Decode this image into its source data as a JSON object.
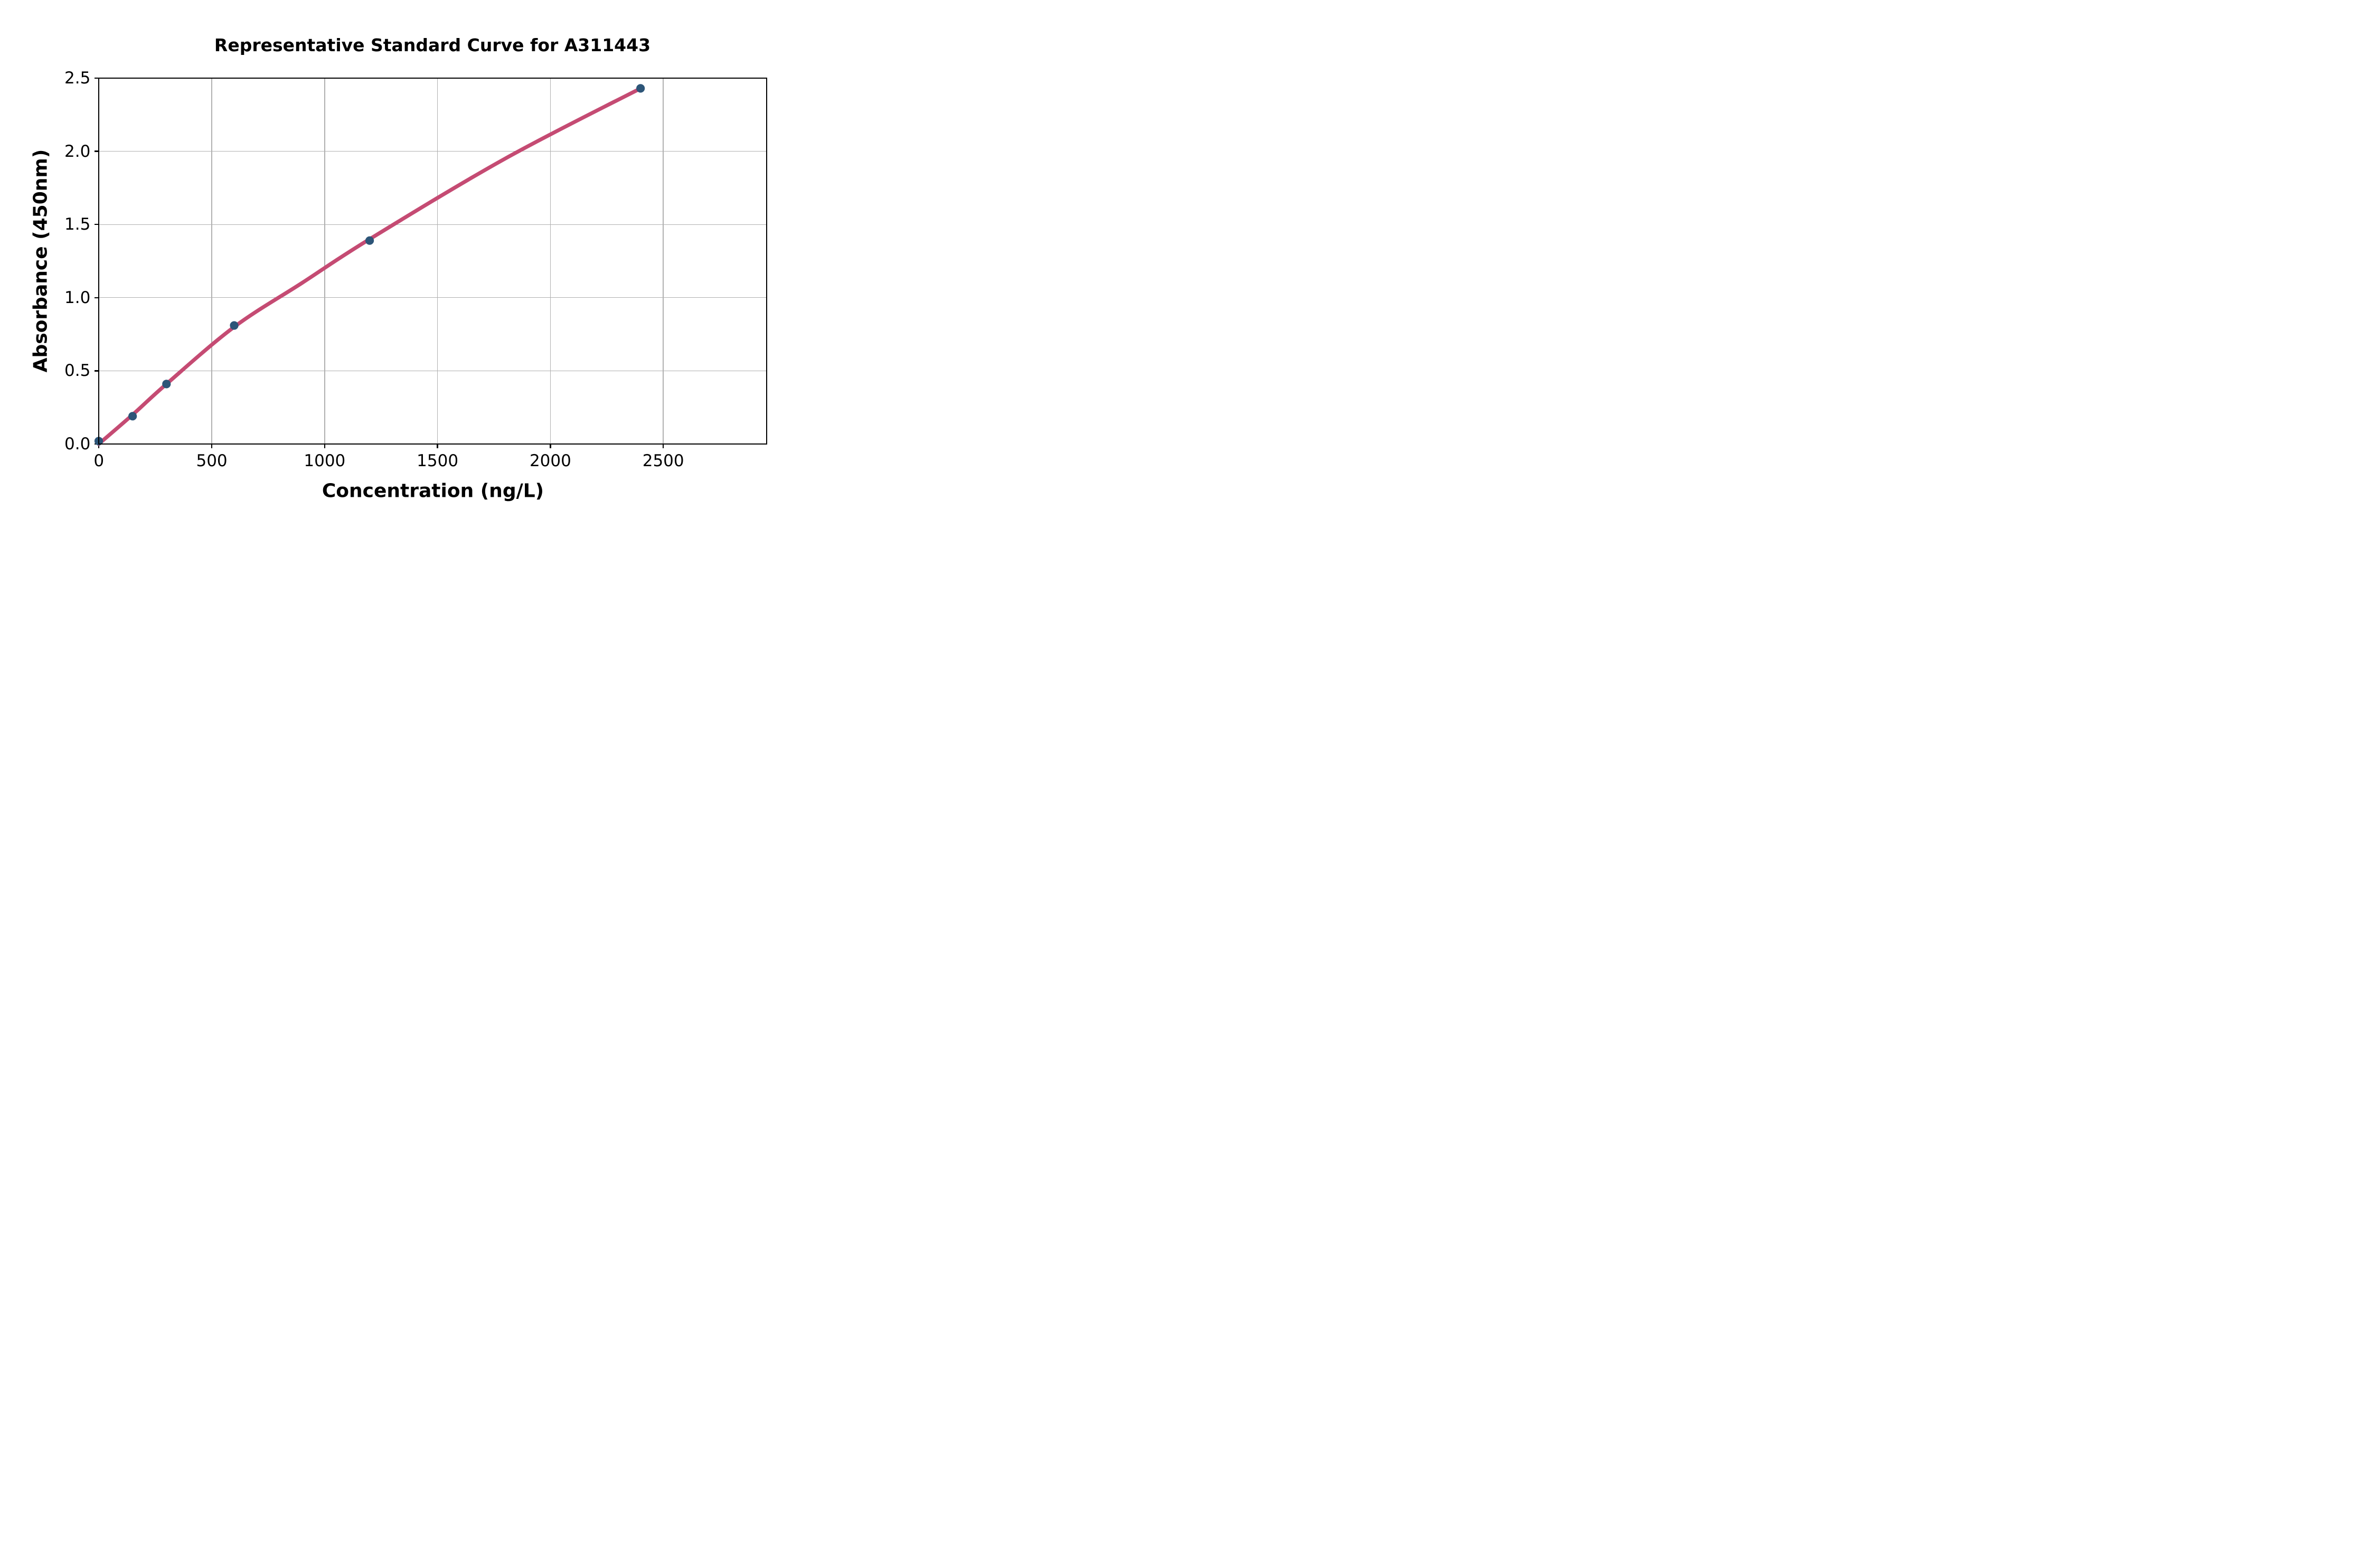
{
  "chart": {
    "title": "Representative Standard Curve for A311443",
    "xlabel": "Concentration (ng/L)",
    "ylabel": "Absorbance (450nm)"
  },
  "chart_data": {
    "type": "scatter",
    "title": "Representative Standard Curve for A311443",
    "xlabel": "Concentration (ng/L)",
    "ylabel": "Absorbance (450nm)",
    "x_ticks": [
      0,
      500,
      1000,
      1500,
      2000,
      2500
    ],
    "y_ticks": [
      0.0,
      0.5,
      1.0,
      1.5,
      2.0,
      2.5
    ],
    "xlim": [
      0,
      2958
    ],
    "ylim": [
      0,
      2.5
    ],
    "grid": true,
    "legend": "none",
    "series": [
      {
        "name": "standard-points",
        "type": "scatter",
        "marker_color": "#2d5578",
        "x": [
          0,
          150,
          300,
          600,
          1200,
          2400
        ],
        "y": [
          0.02,
          0.19,
          0.41,
          0.81,
          1.39,
          2.43
        ]
      },
      {
        "name": "fitted-curve",
        "type": "line",
        "line_color": "#c54b73",
        "x": [
          0,
          150,
          300,
          600,
          900,
          1200,
          1800,
          2400
        ],
        "y": [
          0.0,
          0.2,
          0.41,
          0.8,
          1.1,
          1.4,
          1.95,
          2.43
        ]
      }
    ],
    "colors": {
      "grid": "#b0b0b0",
      "spine": "#000000",
      "background": "#ffffff",
      "text": "#000000"
    }
  }
}
